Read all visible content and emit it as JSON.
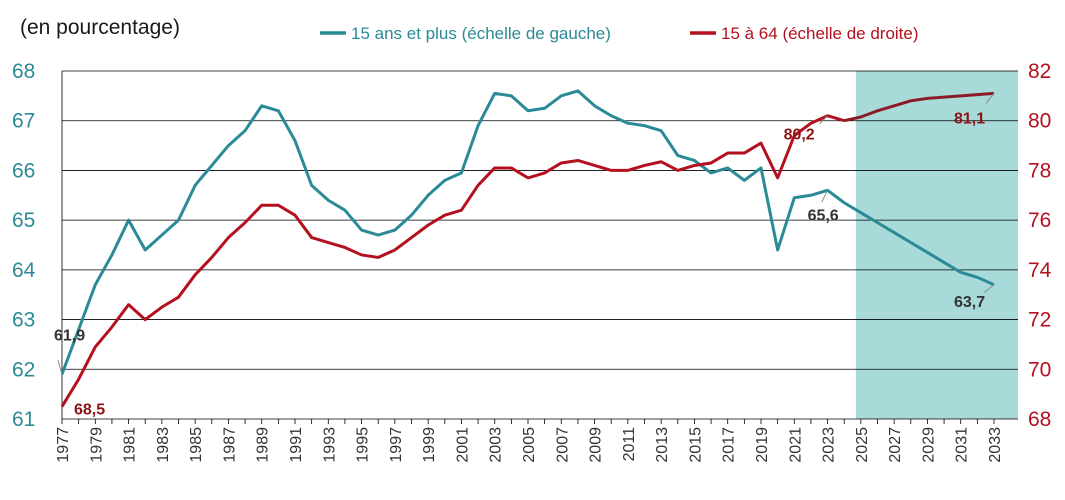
{
  "unit_label": "(en pourcentage)",
  "colors": {
    "teal": "#2a8a96",
    "red": "#b4101f",
    "red_dark": "#8c1c24",
    "projection_shade": "#a9dada",
    "grid": "#000000",
    "annotation_dark": "#333333",
    "annotation_red": "#8c1414"
  },
  "chart_data": {
    "type": "line",
    "title": "",
    "xlabel": "",
    "ylabel": "(en pourcentage)",
    "x": [
      1977,
      1978,
      1979,
      1980,
      1981,
      1982,
      1983,
      1984,
      1985,
      1986,
      1987,
      1988,
      1989,
      1990,
      1991,
      1992,
      1993,
      1994,
      1995,
      1996,
      1997,
      1998,
      1999,
      2000,
      2001,
      2002,
      2003,
      2004,
      2005,
      2006,
      2007,
      2008,
      2009,
      2010,
      2011,
      2012,
      2013,
      2014,
      2015,
      2016,
      2017,
      2018,
      2019,
      2020,
      2021,
      2022,
      2023,
      2024,
      2025,
      2026,
      2027,
      2028,
      2029,
      2030,
      2031,
      2032,
      2033
    ],
    "x_tick_labels": [
      "1977",
      "1979",
      "1981",
      "1983",
      "1985",
      "1987",
      "1989",
      "1991",
      "1993",
      "1995",
      "1997",
      "1999",
      "2001",
      "2003",
      "2005",
      "2007",
      "2009",
      "2011",
      "2013",
      "2015",
      "2017",
      "2019",
      "2021",
      "2023",
      "2025",
      "2027",
      "2029",
      "2031",
      "2033"
    ],
    "y_left": {
      "ylim": [
        61,
        68
      ],
      "ticks": [
        "61",
        "62",
        "63",
        "64",
        "65",
        "66",
        "67",
        "68"
      ]
    },
    "y_right": {
      "ylim": [
        68,
        82
      ],
      "ticks": [
        "68",
        "70",
        "72",
        "74",
        "76",
        "78",
        "80",
        "82"
      ]
    },
    "projection_start": 2025,
    "legend_position": "top",
    "grid": true,
    "series": [
      {
        "name": "15 ans et plus (échelle de gauche)",
        "axis": "left",
        "values": [
          61.9,
          62.8,
          63.7,
          64.3,
          65.0,
          64.4,
          64.7,
          65.0,
          65.7,
          66.1,
          66.5,
          66.8,
          67.3,
          67.2,
          66.6,
          65.7,
          65.4,
          65.2,
          64.8,
          64.7,
          64.8,
          65.1,
          65.5,
          65.8,
          65.95,
          66.9,
          67.55,
          67.5,
          67.2,
          67.25,
          67.5,
          67.6,
          67.3,
          67.1,
          66.95,
          66.9,
          66.8,
          66.3,
          66.2,
          65.95,
          66.05,
          65.8,
          66.05,
          64.4,
          65.45,
          65.5,
          65.6,
          65.35,
          65.15,
          64.95,
          64.75,
          64.55,
          64.35,
          64.15,
          63.95,
          63.85,
          63.7
        ]
      },
      {
        "name": "15 à 64 (échelle de droite)",
        "axis": "right",
        "values": [
          68.5,
          69.6,
          70.9,
          71.7,
          72.6,
          72.0,
          72.5,
          72.9,
          73.8,
          74.5,
          75.3,
          75.9,
          76.6,
          76.6,
          76.2,
          75.3,
          75.1,
          74.9,
          74.6,
          74.5,
          74.8,
          75.3,
          75.8,
          76.2,
          76.4,
          77.4,
          78.1,
          78.1,
          77.7,
          77.9,
          78.3,
          78.4,
          78.2,
          78.0,
          78.0,
          78.2,
          78.35,
          78.0,
          78.2,
          78.3,
          78.7,
          78.7,
          79.1,
          77.7,
          79.4,
          79.9,
          80.2,
          80.0,
          80.15,
          80.4,
          80.6,
          80.8,
          80.9,
          80.95,
          81.0,
          81.05,
          81.1
        ]
      }
    ],
    "annotations": [
      {
        "text": "61,9",
        "series": 0,
        "x": 1977
      },
      {
        "text": "68,5",
        "series": 1,
        "x": 1977
      },
      {
        "text": "80,2",
        "series": 1,
        "x": 2023
      },
      {
        "text": "65,6",
        "series": 0,
        "x": 2023
      },
      {
        "text": "81,1",
        "series": 1,
        "x": 2033
      },
      {
        "text": "63,7",
        "series": 0,
        "x": 2033
      }
    ]
  }
}
